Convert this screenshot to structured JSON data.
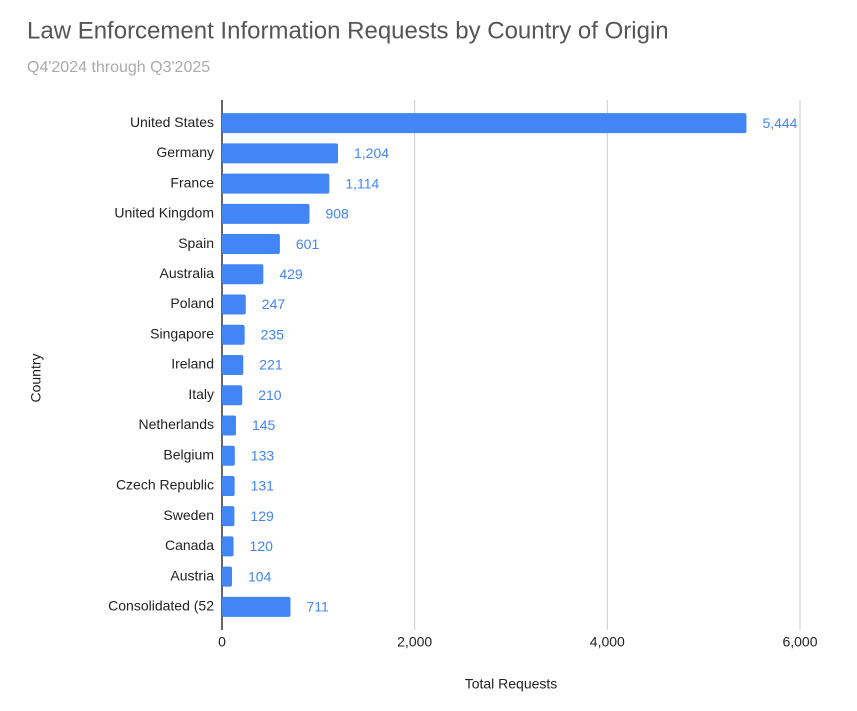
{
  "chart_data": {
    "type": "bar",
    "orientation": "horizontal",
    "title": "Law Enforcement Information Requests by Country of Origin",
    "subtitle": "Q4'2024 through Q3'2025",
    "x_label": "Total Requests",
    "y_label": "Country",
    "categories": [
      "United States",
      "Germany",
      "France",
      "United Kingdom",
      "Spain",
      "Australia",
      "Poland",
      "Singapore",
      "Ireland",
      "Italy",
      "Netherlands",
      "Belgium",
      "Czech Republic",
      "Sweden",
      "Canada",
      "Austria",
      "Consolidated (52"
    ],
    "values": [
      5444,
      1204,
      1114,
      908,
      601,
      429,
      247,
      235,
      221,
      210,
      145,
      133,
      131,
      129,
      120,
      104,
      711
    ],
    "value_labels": [
      "5,444",
      "1,204",
      "1,114",
      "908",
      "601",
      "429",
      "247",
      "235",
      "221",
      "210",
      "145",
      "133",
      "131",
      "129",
      "120",
      "104",
      "711"
    ],
    "color": "#4285f4",
    "xlim": [
      0,
      6000
    ],
    "xticks": [
      0,
      {
        "value": 2000,
        "label": "2,000"
      },
      {
        "value": 4000,
        "label": "4,000"
      },
      {
        "value": 6000,
        "label": "6,000"
      }
    ],
    "grid": true
  }
}
